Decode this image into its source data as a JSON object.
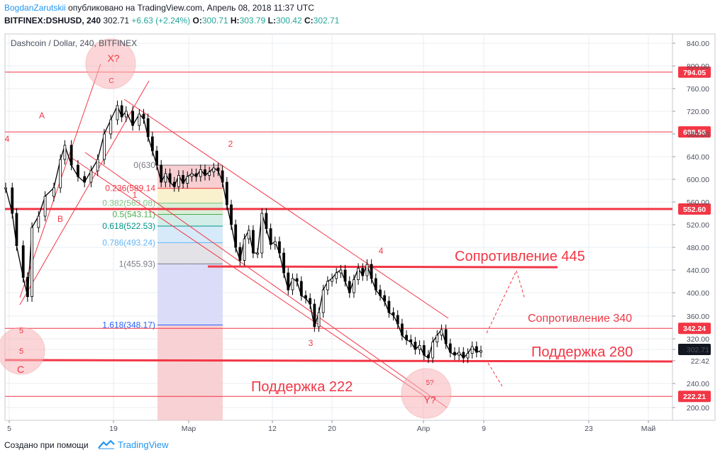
{
  "header": {
    "author": "BogdanZarutskii",
    "published_text": " опубликовано на TradingView.com, Апрель 08, 2018 11:37 UTC",
    "symbol": "BITFINEX:DSHUSD, 240",
    "price": "302.71",
    "change": "+6.63 (+2.24%)",
    "o_label": "O:",
    "o_value": "300.71",
    "h_label": "H:",
    "h_value": "303.79",
    "l_label": "L:",
    "l_value": "300.42",
    "c_label": "C:",
    "c_value": "302.71"
  },
  "footer": {
    "created_with": "Создано при помощи",
    "brand": "TradingView"
  },
  "chart_data": {
    "type": "candlestick",
    "title": "Dashcoin / Dollar, 240, BITFINEX",
    "y_ticks": [
      "840.00",
      "800.00",
      "760.00",
      "720.00",
      "680.00",
      "640.00",
      "600.00",
      "560.00",
      "520.00",
      "480.00",
      "440.00",
      "400.00",
      "360.00",
      "320.00",
      "302.71",
      "22:42",
      "240.00",
      "200.00"
    ],
    "x_ticks": [
      "5",
      "19",
      "Мар",
      "12",
      "20",
      "Апр",
      "9",
      "23",
      "Май"
    ],
    "ylim": [
      180,
      860
    ],
    "price_series": [
      [
        0,
        590
      ],
      [
        3,
        545
      ],
      [
        5,
        488
      ],
      [
        8,
        432
      ],
      [
        10,
        398
      ],
      [
        12,
        520
      ],
      [
        15,
        540
      ],
      [
        18,
        575
      ],
      [
        22,
        590
      ],
      [
        25,
        640
      ],
      [
        27,
        665
      ],
      [
        30,
        630
      ],
      [
        33,
        610
      ],
      [
        36,
        600
      ],
      [
        39,
        620
      ],
      [
        42,
        640
      ],
      [
        45,
        685
      ],
      [
        48,
        710
      ],
      [
        51,
        735
      ],
      [
        53,
        715
      ],
      [
        55,
        725
      ],
      [
        58,
        700
      ],
      [
        61,
        720
      ],
      [
        63,
        712
      ],
      [
        65,
        680
      ],
      [
        67,
        655
      ],
      [
        69,
        630
      ],
      [
        71,
        600
      ],
      [
        73,
        615
      ],
      [
        75,
        600
      ],
      [
        77,
        592
      ],
      [
        79,
        612
      ],
      [
        81,
        598
      ],
      [
        83,
        610
      ],
      [
        85,
        615
      ],
      [
        87,
        610
      ],
      [
        89,
        622
      ],
      [
        91,
        612
      ],
      [
        93,
        618
      ],
      [
        95,
        625
      ],
      [
        97,
        620
      ],
      [
        99,
        600
      ],
      [
        101,
        560
      ],
      [
        103,
        525
      ],
      [
        105,
        485
      ],
      [
        107,
        462
      ],
      [
        109,
        500
      ],
      [
        111,
        515
      ],
      [
        113,
        475
      ],
      [
        115,
        475
      ],
      [
        117,
        545
      ],
      [
        119,
        518
      ],
      [
        121,
        490
      ],
      [
        123,
        495
      ],
      [
        125,
        475
      ],
      [
        127,
        440
      ],
      [
        129,
        410
      ],
      [
        131,
        430
      ],
      [
        133,
        425
      ],
      [
        135,
        400
      ],
      [
        137,
        395
      ],
      [
        139,
        385
      ],
      [
        141,
        345
      ],
      [
        143,
        370
      ],
      [
        145,
        410
      ],
      [
        147,
        425
      ],
      [
        149,
        430
      ],
      [
        151,
        440
      ],
      [
        153,
        445
      ],
      [
        155,
        425
      ],
      [
        157,
        405
      ],
      [
        159,
        428
      ],
      [
        161,
        448
      ],
      [
        163,
        435
      ],
      [
        165,
        455
      ],
      [
        167,
        430
      ],
      [
        169,
        410
      ],
      [
        171,
        400
      ],
      [
        173,
        390
      ],
      [
        175,
        370
      ],
      [
        177,
        365
      ],
      [
        179,
        350
      ],
      [
        181,
        330
      ],
      [
        183,
        322
      ],
      [
        185,
        318
      ],
      [
        187,
        305
      ],
      [
        189,
        312
      ],
      [
        191,
        295
      ],
      [
        193,
        290
      ],
      [
        195,
        318
      ],
      [
        197,
        330
      ],
      [
        199,
        340
      ],
      [
        201,
        315
      ],
      [
        203,
        300
      ],
      [
        205,
        295
      ],
      [
        207,
        300
      ],
      [
        209,
        290
      ],
      [
        211,
        298
      ],
      [
        213,
        310
      ],
      [
        215,
        300
      ],
      [
        217,
        302.71
      ]
    ],
    "horizontal_levels": [
      {
        "label": "794.05",
        "value": 794.05,
        "color": "#f23645",
        "label_bg": "#f23645",
        "bold": false
      },
      {
        "label": "688.56",
        "value": 688.56,
        "color": "#f23645",
        "label_bg": "#f23645",
        "bold": false
      },
      {
        "label": "552.60",
        "value": 552.6,
        "color": "#f23645",
        "label_bg": "#f23645",
        "bold": true
      },
      {
        "label": "342.24",
        "value": 342.24,
        "color": "#f23645",
        "label_bg": "#f23645",
        "bold": false
      },
      {
        "label": "222.21",
        "value": 222.21,
        "color": "#f23645",
        "label_bg": "#f23645",
        "bold": false
      }
    ],
    "fib_levels": [
      {
        "label": "0(630",
        "value": 630,
        "color": "#787b86"
      },
      {
        "label": "0.236(589.14",
        "value": 589.14,
        "color": "#f23645"
      },
      {
        "label": "0.382(563.08)",
        "value": 563.08,
        "color": "#81c784"
      },
      {
        "label": "0.5(543.11)",
        "value": 543.11,
        "color": "#4caf50"
      },
      {
        "label": "0.618(522.53)",
        "value": 522.53,
        "color": "#009688"
      },
      {
        "label": "0.786(493.24)",
        "value": 493.24,
        "color": "#64b5f6"
      },
      {
        "label": "1(455.93)",
        "value": 455.93,
        "color": "#787b86"
      },
      {
        "label": "1.618(348.17)",
        "value": 348.17,
        "color": "#2962ff"
      }
    ],
    "annotations": {
      "resistance_445": "Сопротивление 445",
      "resistance_340": "Сопротивление 340",
      "support_280": "Поддержка 280",
      "support_222": "Поддержка 222",
      "x_circle": "X?",
      "x_circle_sub": "C",
      "y_circle": "Y?",
      "y_circle_sub": "5?",
      "c_circle": "C",
      "c_circle_sub": "5",
      "c_circle_top": "5",
      "wave_A": "A",
      "wave_B": "B",
      "wave_1": "1",
      "wave_2": "2",
      "wave_3": "3",
      "wave_4": "4",
      "wave_4_left": "4"
    },
    "colors": {
      "accent": "#f23645",
      "axis_text": "#4c525e",
      "grid": "#e9ecf2",
      "candle": "#000000"
    }
  }
}
